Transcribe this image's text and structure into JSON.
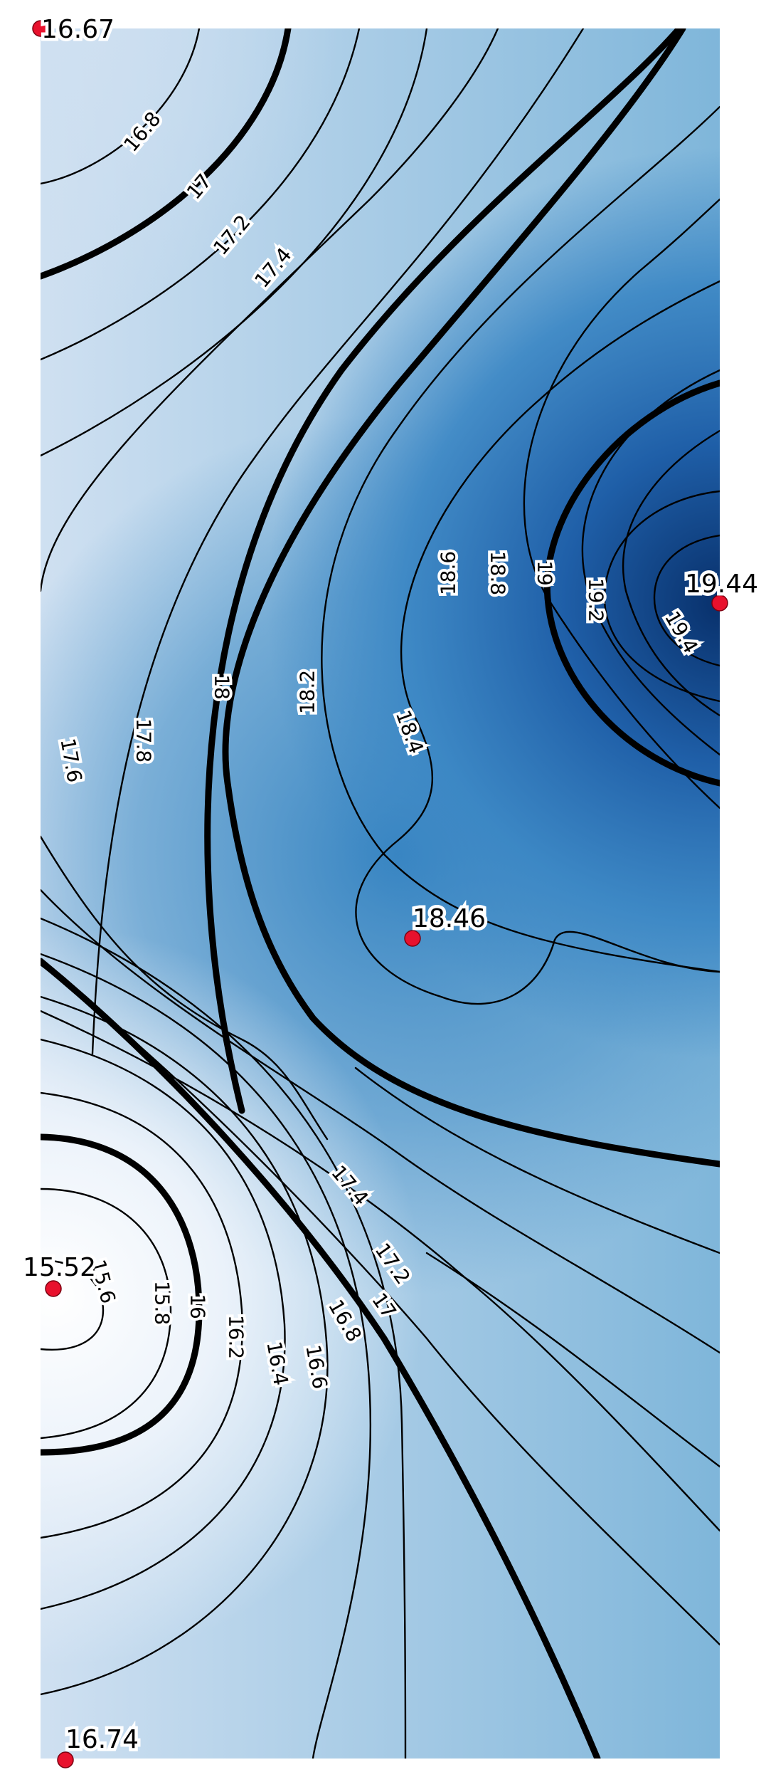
{
  "map": {
    "colors": {
      "low": "#f7fbff",
      "mid": "#7fb6da",
      "high": "#08306b",
      "sample_point": "#e8112d"
    },
    "contour_levels": [
      15.6,
      15.8,
      16,
      16.2,
      16.4,
      16.6,
      16.8,
      17,
      17.2,
      17.4,
      17.6,
      17.8,
      18,
      18.2,
      18.4,
      18.6,
      18.8,
      19,
      19.2,
      19.4
    ],
    "major_levels": [
      16,
      17,
      18,
      19
    ],
    "contour_labels": [
      "16.8",
      "17",
      "17.2",
      "17.4",
      "17.6",
      "17.8",
      "18",
      "18.2",
      "18.4",
      "18.6",
      "18.8",
      "19",
      "19.2",
      "19.4",
      "17.4",
      "17.2",
      "17",
      "16.8",
      "16.6",
      "16.4",
      "16.2",
      "16",
      "15.8",
      "15.6"
    ],
    "sample_points": [
      {
        "label": "16.67",
        "value": 16.67
      },
      {
        "label": "19.44",
        "value": 19.44
      },
      {
        "label": "18.46",
        "value": 18.46
      },
      {
        "label": "15.52",
        "value": 15.52
      },
      {
        "label": "16.74",
        "value": 16.74
      }
    ]
  }
}
